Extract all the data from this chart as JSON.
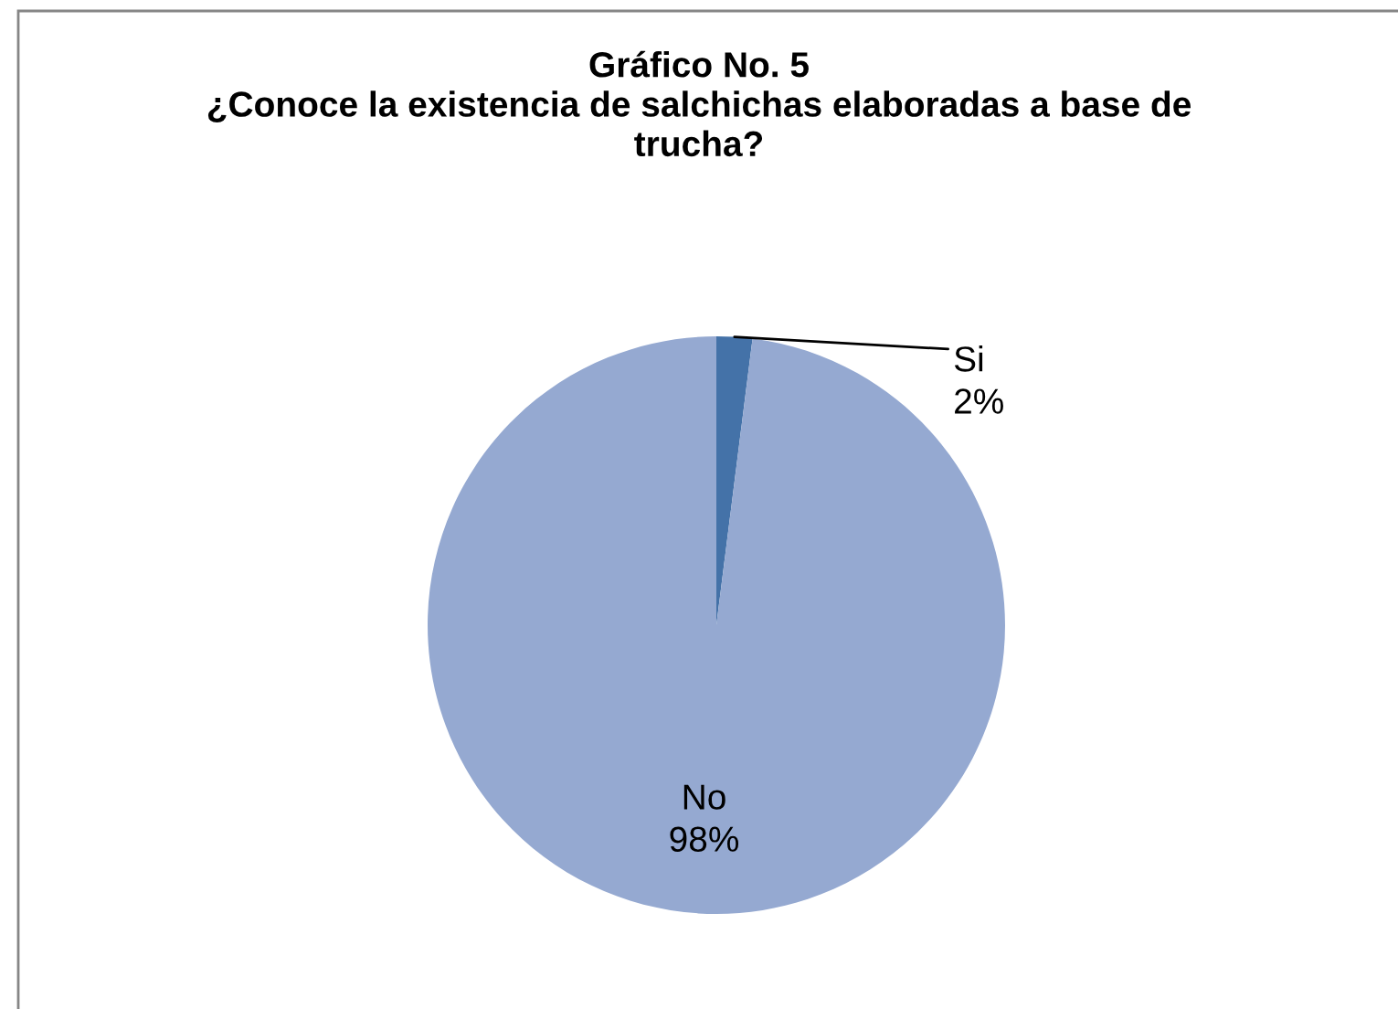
{
  "chart_data": {
    "type": "pie",
    "title": "Gráfico No. 5",
    "subtitle": "¿Conoce la existencia de salchichas elaboradas a base de trucha?",
    "categories": [
      "Si",
      "No"
    ],
    "values": [
      2,
      98
    ],
    "colors": [
      "#4472a8",
      "#95a9d1"
    ],
    "value_labels": [
      "2%",
      "98%"
    ],
    "legend": false
  }
}
